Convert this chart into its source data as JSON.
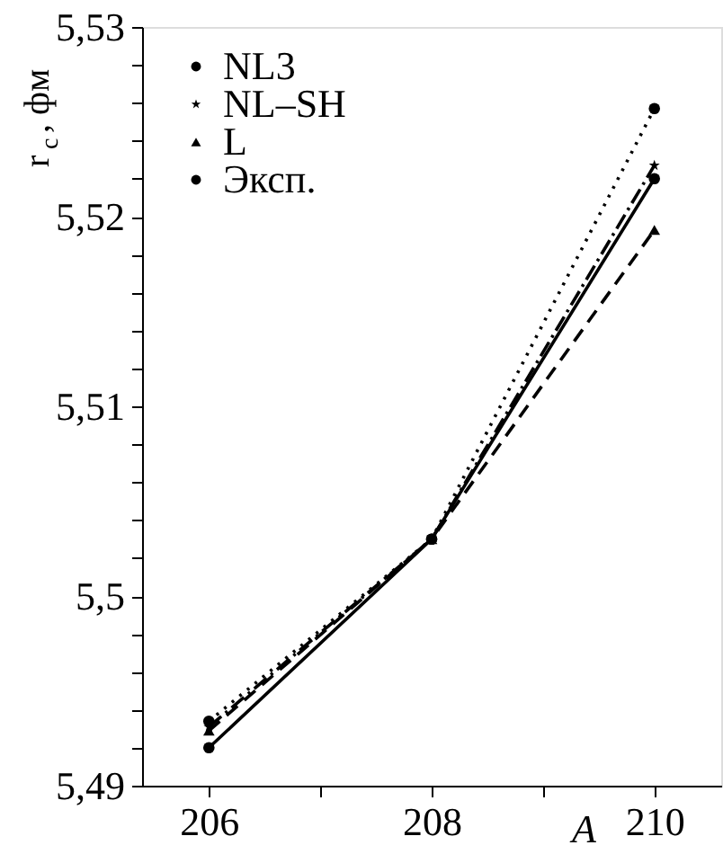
{
  "chart_data": {
    "type": "line",
    "xlabel": "A",
    "ylabel": "r$_{c}$, фм",
    "x": [
      206,
      208,
      210
    ],
    "series": [
      {
        "name": "NL3",
        "color": "#000000",
        "values": [
          5.4934,
          5.503,
          5.5257
        ],
        "marker": "circle",
        "line_style": "dotted"
      },
      {
        "name": "NL–SH",
        "color": "#000000",
        "values": [
          5.4931,
          5.503,
          5.5227
        ],
        "marker": "star",
        "line_style": "dashdot"
      },
      {
        "name": "L",
        "color": "#000000",
        "values": [
          5.4929,
          5.503,
          5.5193
        ],
        "marker": "triangle",
        "line_style": "dashed"
      },
      {
        "name": "Эксп.",
        "color": "#000000",
        "values": [
          5.492,
          5.503,
          5.522
        ],
        "marker": "circle",
        "line_style": "solid"
      }
    ],
    "xlim": [
      205.4,
      210.6
    ],
    "xticks": [
      206,
      {
        "value": 207,
        "label": null
      },
      208,
      {
        "value": 209,
        "label": null
      },
      210
    ],
    "ylim": [
      5.49,
      5.53
    ],
    "yticks": [
      {
        "value": 5.49,
        "label": "5,49"
      },
      {
        "value": 5.492,
        "label": null
      },
      {
        "value": 5.494,
        "label": null
      },
      {
        "value": 5.496,
        "label": null
      },
      {
        "value": 5.498,
        "label": null
      },
      {
        "value": 5.5,
        "label": "5,5"
      },
      {
        "value": 5.502,
        "label": null
      },
      {
        "value": 5.504,
        "label": null
      },
      {
        "value": 5.506,
        "label": null
      },
      {
        "value": 5.508,
        "label": null
      },
      {
        "value": 5.51,
        "label": "5,51"
      },
      {
        "value": 5.512,
        "label": null
      },
      {
        "value": 5.514,
        "label": null
      },
      {
        "value": 5.516,
        "label": null
      },
      {
        "value": 5.518,
        "label": null
      },
      {
        "value": 5.52,
        "label": "5,52"
      },
      {
        "value": 5.522,
        "label": null
      },
      {
        "value": 5.524,
        "label": null
      },
      {
        "value": 5.526,
        "label": null
      },
      {
        "value": 5.528,
        "label": null
      },
      {
        "value": 5.53,
        "label": "5,53"
      }
    ],
    "grid": false,
    "legend": "top left"
  }
}
